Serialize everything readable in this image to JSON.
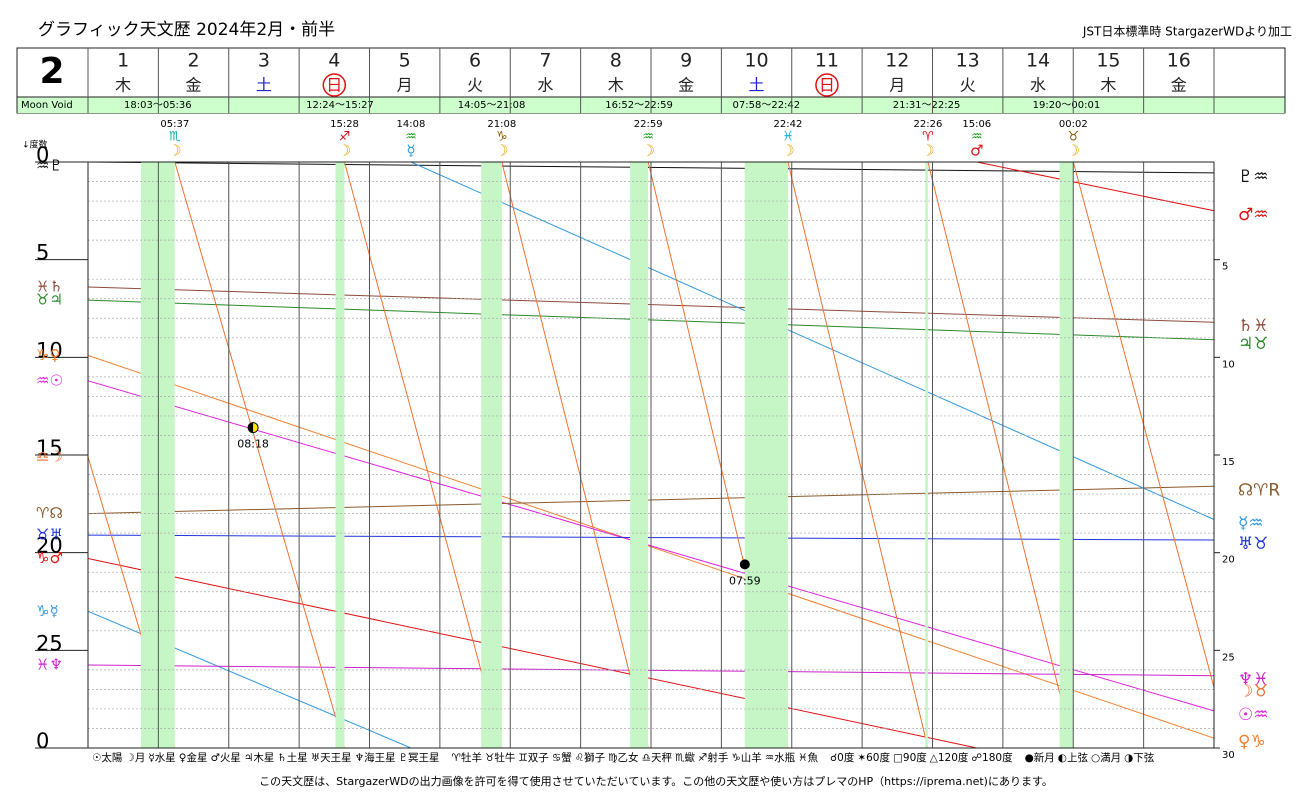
{
  "chart_data": {
    "type": "line",
    "title": "グラフィック天文歴 2024年2月・前半",
    "source": "JST日本標準時 StargazerWDより加工",
    "month": "2",
    "void_label": "Moon Void",
    "degree_label": "↓度数",
    "footer": "この天文歴は、StargazerWDの出力画像を許可を得て使用させていただいています。この他の天文歴や使い方はプレマのHP（https://iprema.net)にあります。",
    "days": [
      {
        "day": 1,
        "weekday": "木"
      },
      {
        "day": 2,
        "weekday": "金"
      },
      {
        "day": 3,
        "weekday": "土",
        "weekday_color": "#2222cc"
      },
      {
        "day": 4,
        "weekday": "日",
        "weekday_color": "#dd1111",
        "circled": true
      },
      {
        "day": 5,
        "weekday": "月"
      },
      {
        "day": 6,
        "weekday": "火"
      },
      {
        "day": 7,
        "weekday": "水"
      },
      {
        "day": 8,
        "weekday": "木"
      },
      {
        "day": 9,
        "weekday": "金"
      },
      {
        "day": 10,
        "weekday": "土",
        "weekday_color": "#2222cc"
      },
      {
        "day": 11,
        "weekday": "日",
        "weekday_color": "#dd1111",
        "circled": true
      },
      {
        "day": 12,
        "weekday": "月"
      },
      {
        "day": 13,
        "weekday": "火"
      },
      {
        "day": 14,
        "weekday": "水"
      },
      {
        "day": 15,
        "weekday": "木"
      },
      {
        "day": 16,
        "weekday": "金"
      }
    ],
    "voids": [
      {
        "label": "18:03～05:36",
        "start": 0.752,
        "end": 1.233
      },
      {
        "label": "12:24～15:27",
        "start": 3.517,
        "end": 3.644
      },
      {
        "label": "14:05～21:08",
        "start": 5.587,
        "end": 5.881
      },
      {
        "label": "16:52～22:59",
        "start": 7.703,
        "end": 7.958
      },
      {
        "label": "07:58～22:42",
        "start": 9.332,
        "end": 9.946
      },
      {
        "label": "21:31～22:25",
        "start": 11.897,
        "end": 11.934
      },
      {
        "label": "19:20～00:01",
        "start": 13.806,
        "end": 14.0
      }
    ],
    "ingresses": [
      {
        "time": "05:37",
        "sign": "♏",
        "body": "☽",
        "x": 1.234,
        "sign_color": "#11aaaa",
        "color": "#e8a000"
      },
      {
        "time": "15:28",
        "sign": "♐",
        "body": "☽",
        "x": 3.645,
        "sign_color": "#dd1111",
        "color": "#e8a000"
      },
      {
        "time": "14:08",
        "sign": "♒",
        "body": "☿",
        "x": 4.589,
        "sign_color": "#119911",
        "color": "#3399dd"
      },
      {
        "time": "21:08",
        "sign": "♑",
        "body": "☽",
        "x": 5.88,
        "sign_color": "#8b5a00",
        "color": "#e8a000"
      },
      {
        "time": "22:59",
        "sign": "♒",
        "body": "☽",
        "x": 7.96,
        "sign_color": "#119911",
        "color": "#e8a000"
      },
      {
        "time": "22:42",
        "sign": "♓",
        "body": "☽",
        "x": 9.946,
        "sign_color": "#11aadd",
        "color": "#e8a000"
      },
      {
        "time": "22:26",
        "sign": "♈",
        "body": "☽",
        "x": 11.935,
        "sign_color": "#dd1111",
        "color": "#e8a000"
      },
      {
        "time": "15:06",
        "sign": "♒",
        "body": "♂",
        "x": 12.629,
        "sign_color": "#119911",
        "color": "#dd1111"
      },
      {
        "time": "00:02",
        "sign": "♉",
        "body": "☽",
        "x": 14.001,
        "sign_color": "#8b5a00",
        "color": "#e8a000"
      }
    ],
    "phases": [
      {
        "label": "08:18",
        "x": 2.346,
        "y": 13.6,
        "phase": "first"
      },
      {
        "label": "07:59",
        "x": 9.333,
        "y": 20.6,
        "phase": "new"
      }
    ],
    "xlim": [
      0,
      16
    ],
    "ylim": [
      0,
      30
    ],
    "yticks": [
      0,
      5,
      10,
      15,
      20,
      25,
      {
        "value": 30,
        "label": "0"
      }
    ],
    "y2ticks": [
      5,
      10,
      15,
      20,
      25,
      30
    ],
    "minor_yticks": [
      1,
      2,
      3,
      4,
      6,
      7,
      8,
      9,
      11,
      12,
      13,
      14,
      16,
      17,
      18,
      19,
      21,
      22,
      23,
      24,
      26,
      27,
      28,
      29
    ],
    "series": [
      {
        "left_label": "♒♇",
        "right_label": "♇♒",
        "color": "#111111",
        "x": [
          0,
          16
        ],
        "values": [
          0.0,
          0.56
        ]
      },
      {
        "left_label": "♑♂",
        "right_label": "♂♒",
        "color": "#e01010",
        "x": [
          0,
          12.63,
          null,
          12.63,
          16
        ],
        "values": [
          20.3,
          30,
          null,
          0,
          2.5
        ]
      },
      {
        "left_label": "♓♄",
        "right_label": "♄♓",
        "color": "#8b4a3a",
        "x": [
          0,
          16
        ],
        "values": [
          6.4,
          8.2
        ]
      },
      {
        "left_label": "♉♃",
        "right_label": "♃♉",
        "color": "#2a8a2a",
        "x": [
          0,
          16
        ],
        "values": [
          7.07,
          9.1
        ]
      },
      {
        "left_label": "♑♀",
        "right_label": "♀♑",
        "color": "#f08030",
        "x": [
          0,
          16
        ],
        "values": [
          9.9,
          29.5
        ]
      },
      {
        "left_label": "♒☉",
        "right_label": "☉♒",
        "color": "#e020e0",
        "x": [
          0,
          16
        ],
        "values": [
          11.2,
          28.1
        ]
      },
      {
        "left_label": "♈☊",
        "right_label": "☊♈R",
        "color": "#8b5a2b",
        "x": [
          0,
          16
        ],
        "values": [
          18.0,
          16.6
        ]
      },
      {
        "left_label": "♑☿",
        "right_label": "☿♒",
        "color": "#3399dd",
        "x": [
          0,
          4.59,
          null,
          4.59,
          16
        ],
        "values": [
          23.0,
          30,
          null,
          0,
          18.3
        ]
      },
      {
        "left_label": "♉♅",
        "right_label": "♅♉",
        "color": "#2233dd",
        "x": [
          0,
          16
        ],
        "values": [
          19.1,
          19.35
        ]
      },
      {
        "left_label": "♓♆",
        "right_label": "♆♓",
        "color": "#cc22cc",
        "x": [
          0,
          16
        ],
        "values": [
          25.75,
          26.3
        ]
      },
      {
        "left_label": "♎☽",
        "right_label": "☽♉",
        "color": "#f07030",
        "x": [
          0,
          1.234,
          null,
          1.234,
          3.645,
          null,
          3.645,
          5.88,
          null,
          5.88,
          7.96,
          null,
          7.96,
          9.946,
          null,
          9.946,
          11.935,
          null,
          11.935,
          14.001,
          null,
          14.001,
          16
        ],
        "values": [
          15.1,
          30,
          null,
          0,
          30,
          null,
          0,
          30,
          null,
          0,
          30,
          null,
          0,
          30,
          null,
          0,
          30,
          null,
          0,
          30,
          null,
          0,
          26.9
        ]
      }
    ],
    "legend": [
      "☉太陽",
      "☽月",
      "☿水星",
      "♀金星",
      "♂火星",
      "♃木星",
      "♄土星",
      "♅天王星",
      "♆海王星",
      "♇冥王星",
      "♈牡羊",
      "♉牡牛",
      "♊双子",
      "♋蟹",
      "♌獅子",
      "♍乙女",
      "♎天秤",
      "♏蠍",
      "♐射手",
      "♑山羊",
      "♒水瓶",
      "♓魚",
      "☌0度",
      "✶60度",
      "□90度",
      "△120度",
      "☍180度",
      "●新月",
      "◐上弦",
      "○満月",
      "◑下弦"
    ]
  }
}
